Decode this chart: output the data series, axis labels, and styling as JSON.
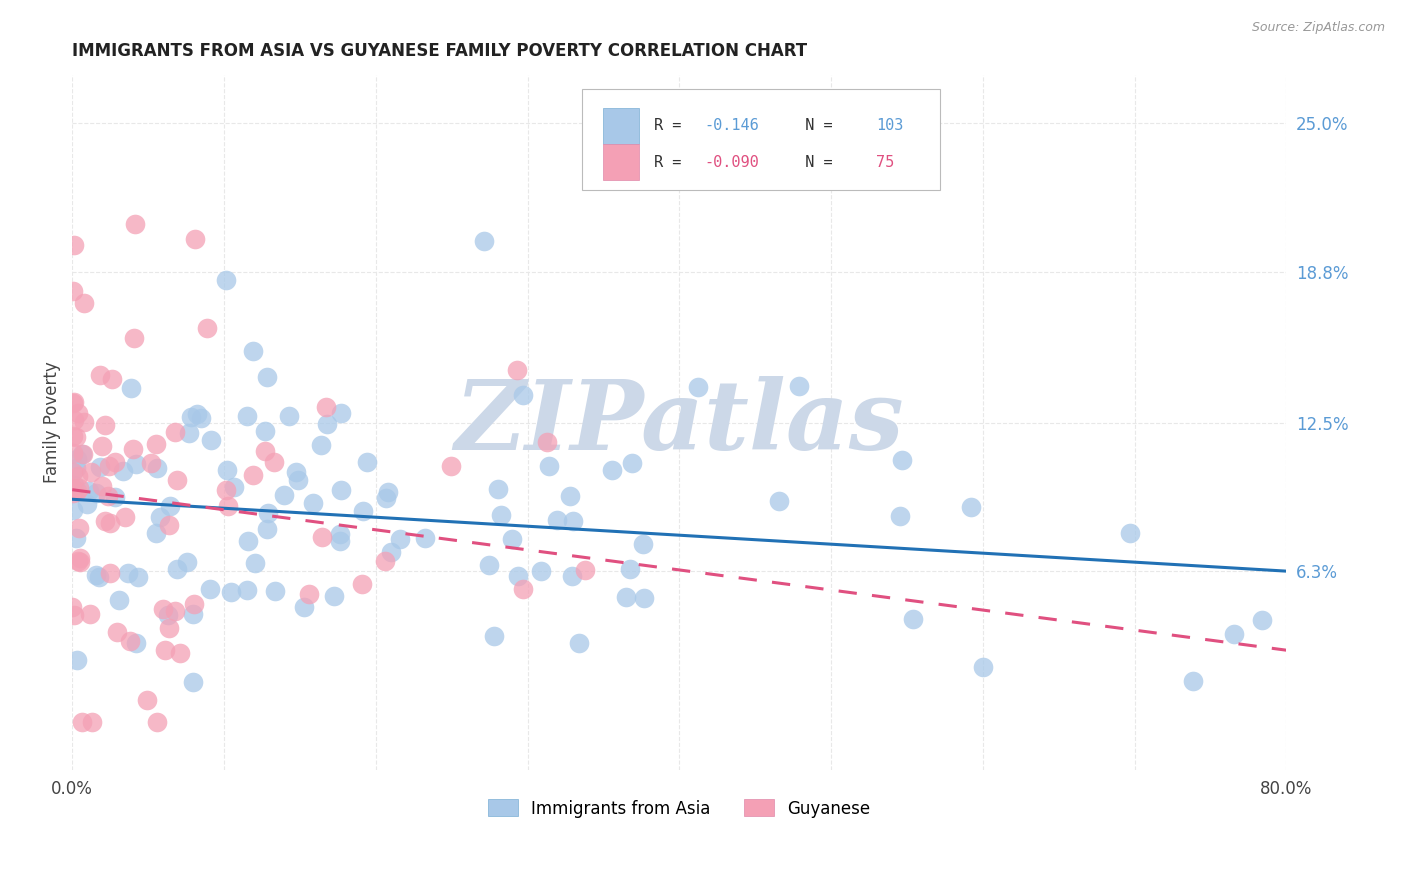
{
  "title": "IMMIGRANTS FROM ASIA VS GUYANESE FAMILY POVERTY CORRELATION CHART",
  "source": "Source: ZipAtlas.com",
  "ylabel": "Family Poverty",
  "yticks_right": [
    0.063,
    0.125,
    0.188,
    0.25
  ],
  "ytick_labels_right": [
    "6.3%",
    "12.5%",
    "18.8%",
    "25.0%"
  ],
  "xlim": [
    0.0,
    0.8
  ],
  "ylim": [
    -0.02,
    0.27
  ],
  "series_blue": {
    "label": "Immigrants from Asia",
    "R": -0.146,
    "N": 103,
    "color": "#a8c8e8",
    "trend_color": "#2171b5",
    "trend_style": "solid",
    "trend_start": 0.093,
    "trend_end": 0.063
  },
  "series_pink": {
    "label": "Guyanese",
    "R": -0.09,
    "N": 75,
    "color": "#f4a0b5",
    "trend_color": "#e05080",
    "trend_style": "dashed",
    "trend_start": 0.097,
    "trend_end": 0.03
  },
  "watermark": "ZIPatlas",
  "watermark_color": "#ccd8e8",
  "background_color": "#ffffff",
  "grid_color": "#e8e8e8",
  "legend_R_blue": "-0.146",
  "legend_N_blue": "103",
  "legend_R_pink": "-0.090",
  "legend_N_pink": "75",
  "blue_text_color": "#5b9bd5",
  "pink_text_color": "#e05080"
}
